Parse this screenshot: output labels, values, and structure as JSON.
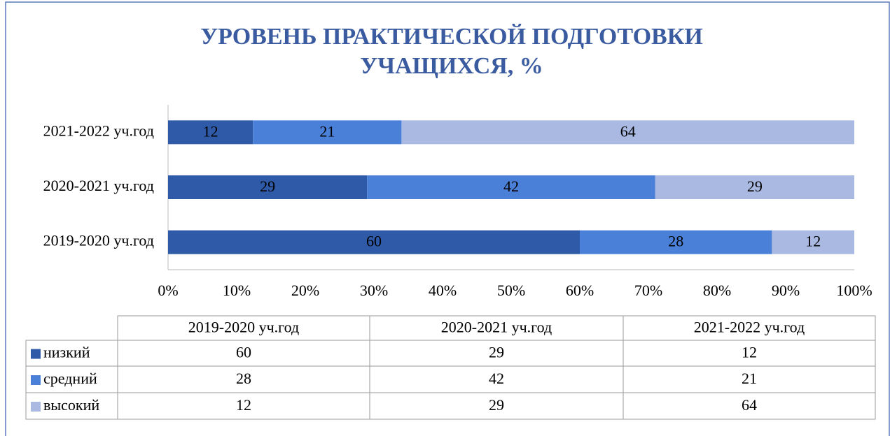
{
  "chart_data": {
    "type": "bar",
    "orientation": "horizontal",
    "stacking": "percent",
    "title": [
      "УРОВЕНЬ ПРАКТИЧЕСКОЙ ПОДГОТОВКИ",
      "УЧАЩИХСЯ, %"
    ],
    "categories": [
      "2019-2020 уч.год",
      "2020-2021 уч.год",
      "2021-2022 уч.год"
    ],
    "series": [
      {
        "name": "низкий",
        "color": "#2f5aa8",
        "values": [
          60,
          29,
          12
        ]
      },
      {
        "name": "средний",
        "color": "#4a80d8",
        "values": [
          28,
          42,
          21
        ]
      },
      {
        "name": "высокий",
        "color": "#a9b9e2",
        "values": [
          12,
          29,
          64
        ]
      }
    ],
    "xlim": [
      0,
      100
    ],
    "xticks": [
      {
        "value": 0,
        "label": "0%"
      },
      {
        "value": 10,
        "label": "10%"
      },
      {
        "value": 20,
        "label": "20%"
      },
      {
        "value": 30,
        "label": "30%"
      },
      {
        "value": 40,
        "label": "40%"
      },
      {
        "value": 50,
        "label": "50%"
      },
      {
        "value": 60,
        "label": "60%"
      },
      {
        "value": 70,
        "label": "70%"
      },
      {
        "value": 80,
        "label": "80%"
      },
      {
        "value": 90,
        "label": "90%"
      },
      {
        "value": 100,
        "label": "100%"
      }
    ],
    "data_table": true
  }
}
